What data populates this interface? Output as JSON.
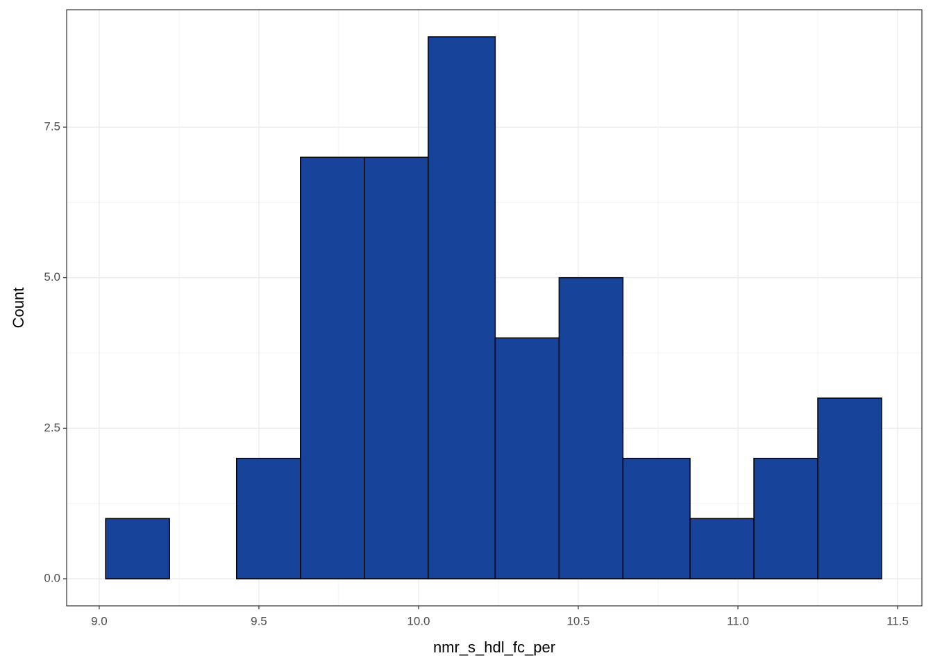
{
  "chart_data": {
    "type": "histogram",
    "x_label": "nmr_s_hdl_fc_per",
    "y_label": "Count",
    "bins": [
      9.02,
      9.22,
      9.43,
      9.63,
      9.83,
      10.03,
      10.24,
      10.44,
      10.64,
      10.85,
      11.05,
      11.25,
      11.45
    ],
    "counts": [
      1,
      0,
      2,
      7,
      7,
      9,
      4,
      5,
      2,
      1,
      2,
      3
    ],
    "color": "#17449a",
    "edge_color": "#000000",
    "xlim": [
      8.898,
      11.576
    ],
    "xticks": [
      {
        "value": 9.0,
        "label": "9.0"
      },
      9.5,
      {
        "value": 10.0,
        "label": "10.0"
      },
      10.5,
      {
        "value": 11.0,
        "label": "11.0"
      },
      11.5
    ],
    "ylim": [
      -0.45,
      9.45
    ],
    "yticks": [
      {
        "value": 0,
        "label": "0.0"
      },
      2.5,
      {
        "value": 5,
        "label": "5.0"
      },
      7.5
    ],
    "grid": true
  }
}
